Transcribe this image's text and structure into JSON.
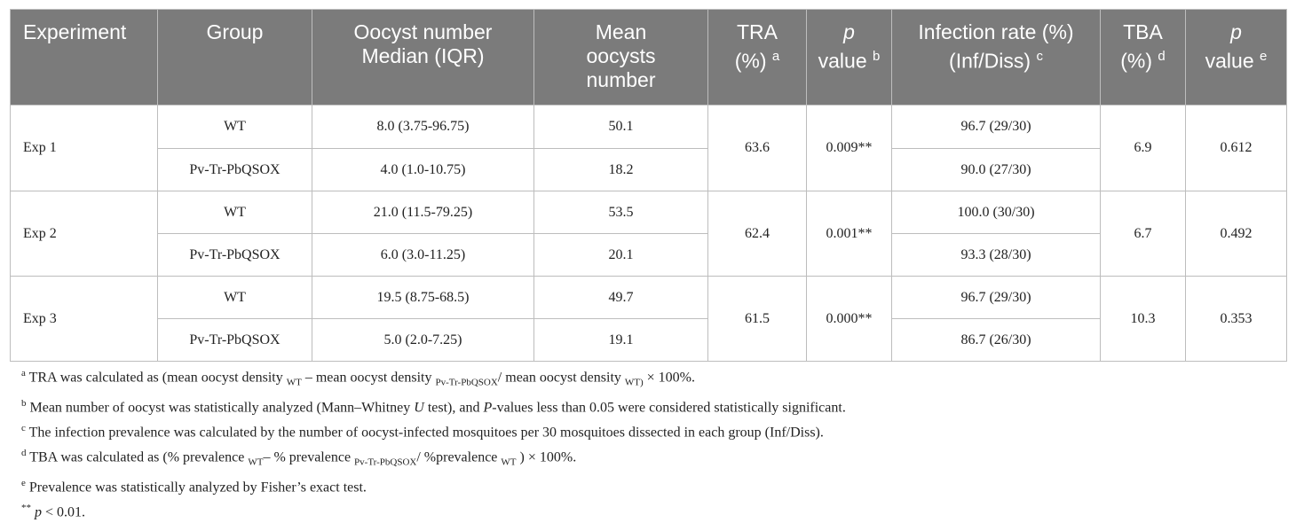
{
  "table": {
    "headers": {
      "experiment": "Experiment",
      "group": "Group",
      "oocyst_line1": "Oocyst number",
      "oocyst_line2": "Median (IQR)",
      "mean_line1": "Mean",
      "mean_line2": "oocysts",
      "mean_line3": "number",
      "tra_line1": "TRA",
      "tra_line2": "(%)",
      "tra_sup": "a",
      "pval_b_line1": "p",
      "pval_b_line2": "value",
      "pval_b_sup": "b",
      "infection_line1": "Infection rate (%)",
      "infection_line2": "(Inf/Diss)",
      "infection_sup": "c",
      "tba_line1": "TBA",
      "tba_line2": "(%)",
      "tba_sup": "d",
      "pval_e_line1": "p",
      "pval_e_line2": "value",
      "pval_e_sup": "e"
    },
    "experiments": [
      {
        "name": "Exp 1",
        "tra": "63.6",
        "p_mean": "0.009**",
        "tba": "6.9",
        "p_prev": "0.612",
        "rows": [
          {
            "group": "WT",
            "median_iqr": "8.0 (3.75-96.75)",
            "mean": "50.1",
            "infection": "96.7 (29/30)"
          },
          {
            "group": "Pv-Tr-PbQSOX",
            "median_iqr": "4.0 (1.0-10.75)",
            "mean": "18.2",
            "infection": "90.0 (27/30)"
          }
        ]
      },
      {
        "name": "Exp 2",
        "tra": "62.4",
        "p_mean": "0.001**",
        "tba": "6.7",
        "p_prev": "0.492",
        "rows": [
          {
            "group": "WT",
            "median_iqr": "21.0 (11.5-79.25)",
            "mean": "53.5",
            "infection": "100.0 (30/30)"
          },
          {
            "group": "Pv-Tr-PbQSOX",
            "median_iqr": "6.0 (3.0-11.25)",
            "mean": "20.1",
            "infection": "93.3 (28/30)"
          }
        ]
      },
      {
        "name": "Exp 3",
        "tra": "61.5",
        "p_mean": "0.000**",
        "tba": "10.3",
        "p_prev": "0.353",
        "rows": [
          {
            "group": "WT",
            "median_iqr": "19.5 (8.75-68.5)",
            "mean": "49.7",
            "infection": "96.7 (29/30)"
          },
          {
            "group": "Pv-Tr-PbQSOX",
            "median_iqr": "5.0 (2.0-7.25)",
            "mean": "19.1",
            "infection": "86.7 (26/30)"
          }
        ]
      }
    ]
  },
  "footnotes": {
    "a": {
      "mark": "a",
      "t1": "TRA was calculated as (mean oocyst density",
      "s1": "WT",
      "t2": "– mean oocyst density",
      "s2": "Pv-Tr-PbQSOX",
      "t3": "/ mean oocyst density",
      "s3": "WT)",
      "t4": "× 100%."
    },
    "b": {
      "mark": "b",
      "t1": "Mean number of oocyst was statistically analyzed (Mann–Whitney",
      "i1": "U",
      "t2": "test), and",
      "i2": "P",
      "t3": "-values less than 0.05 were considered statistically significant."
    },
    "c": {
      "mark": "c",
      "text": "The infection prevalence was calculated by the number of oocyst-infected mosquitoes per 30 mosquitoes dissected in each group (Inf/Diss)."
    },
    "d": {
      "mark": "d",
      "t1": "TBA was calculated as (% prevalence",
      "s1": "WT",
      "t2": "– % prevalence",
      "s2": "Pv-Tr-PbQSOX",
      "t3": "/ %prevalence",
      "s3": "WT",
      "t4": ") × 100%."
    },
    "e": {
      "mark": "e",
      "text": "Prevalence was statistically analyzed by Fisher’s exact test."
    },
    "sig": {
      "mark": "**",
      "i1": "p",
      "text": "< 0.01."
    }
  }
}
